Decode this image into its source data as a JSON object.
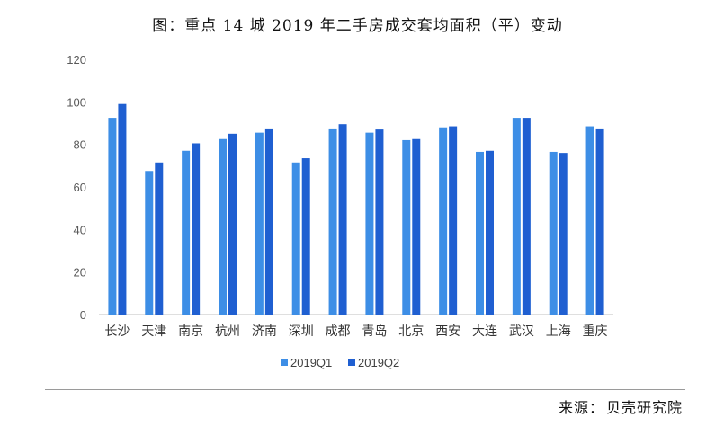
{
  "header": {
    "title": "图：重点 14 城 2019 年二手房成交套均面积（平）变动"
  },
  "footer": {
    "source_label": "来源：",
    "source_name": "贝壳研究院"
  },
  "colors": {
    "q1": "#3d8ee6",
    "q2": "#1f5fd1",
    "axis": "#bfbfbf",
    "tick_text": "#595959"
  },
  "chart_data": {
    "type": "bar",
    "title": "图：重点 14 城 2019 年二手房成交套均面积（平）变动",
    "xlabel": "",
    "ylabel": "",
    "ylim": [
      0,
      120
    ],
    "yticks": [
      0,
      20,
      40,
      60,
      80,
      100,
      120
    ],
    "grid": false,
    "legend": "bottom-center",
    "categories": [
      "长沙",
      "天津",
      "南京",
      "杭州",
      "济南",
      "深圳",
      "成都",
      "青岛",
      "北京",
      "西安",
      "大连",
      "武汉",
      "上海",
      "重庆"
    ],
    "series": [
      {
        "name": "2019Q1",
        "values": [
          92.5,
          67.5,
          77.0,
          82.5,
          85.5,
          71.5,
          87.5,
          85.5,
          82.0,
          88.0,
          76.5,
          92.5,
          76.5,
          88.5
        ]
      },
      {
        "name": "2019Q2",
        "values": [
          99.0,
          71.5,
          80.5,
          85.0,
          87.5,
          73.5,
          89.5,
          87.0,
          82.5,
          88.5,
          77.0,
          92.5,
          76.0,
          87.5
        ]
      }
    ]
  }
}
